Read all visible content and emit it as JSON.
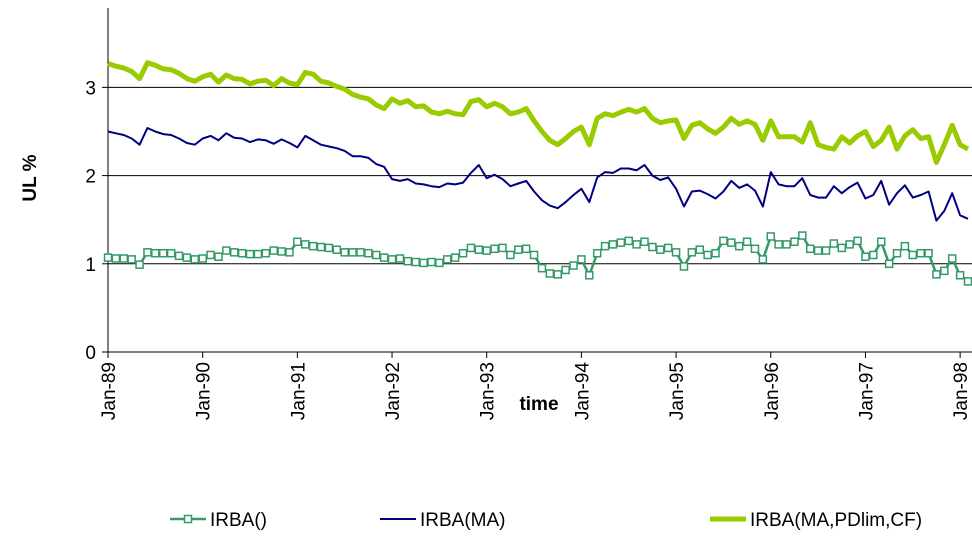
{
  "chart_data": {
    "type": "line",
    "y_label": "UL %",
    "x_label": "time",
    "categories": [
      "Jan-89",
      null,
      null,
      null,
      null,
      null,
      null,
      null,
      null,
      null,
      null,
      null,
      "Jan-90",
      null,
      null,
      null,
      null,
      null,
      null,
      null,
      null,
      null,
      null,
      null,
      "Jan-91",
      null,
      null,
      null,
      null,
      null,
      null,
      null,
      null,
      null,
      null,
      null,
      "Jan-92",
      null,
      null,
      null,
      null,
      null,
      null,
      null,
      null,
      null,
      null,
      null,
      "Jan-93",
      null,
      null,
      null,
      null,
      null,
      null,
      null,
      null,
      null,
      null,
      null,
      "Jan-94",
      null,
      null,
      null,
      null,
      null,
      null,
      null,
      null,
      null,
      null,
      null,
      "Jan-95",
      null,
      null,
      null,
      null,
      null,
      null,
      null,
      null,
      null,
      null,
      null,
      "Jan-96",
      null,
      null,
      null,
      null,
      null,
      null,
      null,
      null,
      null,
      null,
      null,
      "Jan-97",
      null,
      null,
      null,
      null,
      null,
      null,
      null,
      null,
      null,
      null,
      null,
      "Jan-98",
      null
    ],
    "ylim": [
      0,
      3.9
    ],
    "yticks": [
      0,
      1,
      2,
      3
    ],
    "grid": true,
    "series": [
      {
        "name": "IRBA()",
        "color": "#339966",
        "marker": "square",
        "width": 2.5,
        "values": [
          1.07,
          1.06,
          1.06,
          1.05,
          0.99,
          1.13,
          1.12,
          1.12,
          1.12,
          1.09,
          1.07,
          1.05,
          1.06,
          1.1,
          1.08,
          1.15,
          1.13,
          1.12,
          1.11,
          1.11,
          1.12,
          1.15,
          1.14,
          1.13,
          1.25,
          1.22,
          1.2,
          1.19,
          1.18,
          1.16,
          1.13,
          1.13,
          1.13,
          1.12,
          1.1,
          1.07,
          1.05,
          1.06,
          1.03,
          1.02,
          1.01,
          1.02,
          1.01,
          1.05,
          1.07,
          1.12,
          1.18,
          1.16,
          1.15,
          1.17,
          1.18,
          1.1,
          1.16,
          1.17,
          1.1,
          0.95,
          0.89,
          0.88,
          0.93,
          0.98,
          1.05,
          0.87,
          1.12,
          1.2,
          1.22,
          1.24,
          1.26,
          1.22,
          1.25,
          1.19,
          1.16,
          1.18,
          1.13,
          0.97,
          1.13,
          1.16,
          1.1,
          1.12,
          1.26,
          1.24,
          1.2,
          1.25,
          1.17,
          1.05,
          1.31,
          1.22,
          1.22,
          1.25,
          1.32,
          1.17,
          1.15,
          1.15,
          1.23,
          1.18,
          1.22,
          1.26,
          1.08,
          1.1,
          1.25,
          1.0,
          1.12,
          1.2,
          1.1,
          1.12,
          1.12,
          0.88,
          0.92,
          1.06,
          0.87,
          0.8
        ]
      },
      {
        "name": "IRBA(MA)",
        "color": "#000080",
        "marker": "none",
        "width": 2,
        "values": [
          2.5,
          2.48,
          2.46,
          2.42,
          2.35,
          2.54,
          2.5,
          2.47,
          2.46,
          2.42,
          2.37,
          2.35,
          2.42,
          2.45,
          2.4,
          2.48,
          2.43,
          2.42,
          2.38,
          2.41,
          2.4,
          2.36,
          2.41,
          2.37,
          2.32,
          2.45,
          2.4,
          2.35,
          2.33,
          2.31,
          2.28,
          2.22,
          2.22,
          2.2,
          2.13,
          2.1,
          1.96,
          1.94,
          1.96,
          1.91,
          1.9,
          1.88,
          1.87,
          1.91,
          1.9,
          1.92,
          2.03,
          2.12,
          1.97,
          2.01,
          1.96,
          1.88,
          1.91,
          1.94,
          1.82,
          1.72,
          1.66,
          1.63,
          1.7,
          1.78,
          1.85,
          1.7,
          1.98,
          2.04,
          2.03,
          2.08,
          2.08,
          2.06,
          2.12,
          2.0,
          1.95,
          1.98,
          1.85,
          1.65,
          1.82,
          1.83,
          1.79,
          1.74,
          1.82,
          1.94,
          1.86,
          1.9,
          1.83,
          1.65,
          2.04,
          1.9,
          1.88,
          1.88,
          1.97,
          1.78,
          1.75,
          1.75,
          1.88,
          1.8,
          1.87,
          1.92,
          1.74,
          1.78,
          1.94,
          1.67,
          1.8,
          1.89,
          1.75,
          1.78,
          1.82,
          1.49,
          1.6,
          1.8,
          1.55,
          1.51
        ]
      },
      {
        "name": "IRBA(MA,PDlim,CF)",
        "color": "#99cc00",
        "marker": "none",
        "width": 5,
        "values": [
          3.27,
          3.24,
          3.22,
          3.18,
          3.1,
          3.28,
          3.25,
          3.21,
          3.2,
          3.16,
          3.1,
          3.07,
          3.12,
          3.15,
          3.06,
          3.14,
          3.1,
          3.09,
          3.04,
          3.07,
          3.08,
          3.02,
          3.1,
          3.05,
          3.03,
          3.17,
          3.15,
          3.07,
          3.05,
          3.01,
          2.98,
          2.92,
          2.89,
          2.87,
          2.8,
          2.76,
          2.87,
          2.82,
          2.85,
          2.78,
          2.79,
          2.72,
          2.7,
          2.73,
          2.7,
          2.69,
          2.84,
          2.86,
          2.78,
          2.82,
          2.78,
          2.7,
          2.72,
          2.76,
          2.62,
          2.5,
          2.4,
          2.35,
          2.42,
          2.5,
          2.55,
          2.35,
          2.65,
          2.7,
          2.68,
          2.72,
          2.75,
          2.72,
          2.76,
          2.65,
          2.6,
          2.62,
          2.63,
          2.42,
          2.57,
          2.6,
          2.53,
          2.48,
          2.55,
          2.65,
          2.58,
          2.62,
          2.58,
          2.4,
          2.62,
          2.44,
          2.44,
          2.44,
          2.38,
          2.6,
          2.35,
          2.32,
          2.3,
          2.44,
          2.37,
          2.45,
          2.5,
          2.33,
          2.4,
          2.55,
          2.3,
          2.45,
          2.52,
          2.42,
          2.44,
          2.15,
          2.35,
          2.57,
          2.35,
          2.3
        ]
      }
    ]
  }
}
